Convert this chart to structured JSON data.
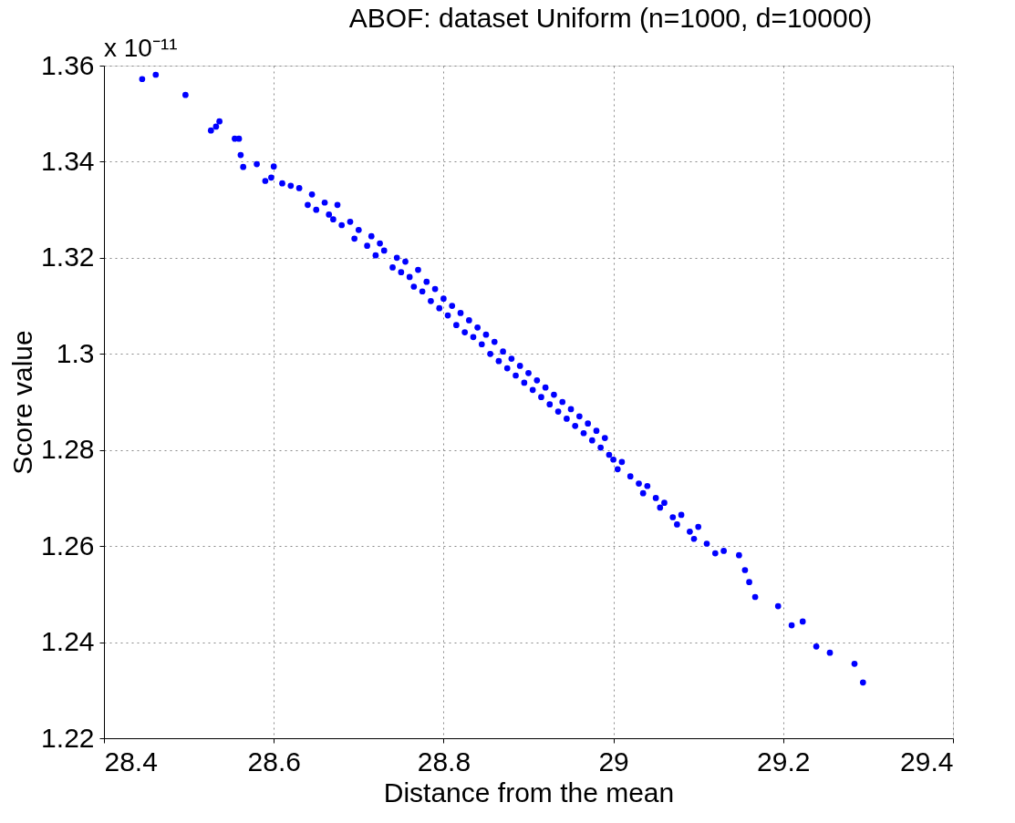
{
  "chart_data": {
    "type": "scatter",
    "title": "ABOF: dataset Uniform (n=1000, d=10000)",
    "xlabel": "Distance from the mean",
    "ylabel": "Score value",
    "annotations": [
      "x 10⁻¹¹"
    ],
    "xlim": [
      28.4,
      29.4
    ],
    "xticks": [
      28.4,
      28.6,
      28.8,
      29,
      29.2,
      29.4
    ],
    "ylim": [
      1.22,
      1.36
    ],
    "yticks": [
      1.22,
      1.24,
      1.26,
      1.28,
      1.3,
      1.32,
      1.34,
      1.36
    ],
    "grid": true,
    "marker": "circle",
    "series": [
      {
        "color": "#0000ff",
        "x": [
          28.445,
          28.461,
          28.496,
          28.526,
          28.532,
          28.536,
          28.554,
          28.559,
          28.561,
          28.564,
          28.58,
          28.59,
          28.597,
          28.6,
          28.61,
          28.62,
          28.63,
          28.64,
          28.645,
          28.65,
          28.66,
          28.665,
          28.67,
          28.675,
          28.68,
          28.69,
          28.695,
          28.7,
          28.71,
          28.715,
          28.72,
          28.725,
          28.73,
          28.74,
          28.745,
          28.75,
          28.755,
          28.76,
          28.765,
          28.77,
          28.775,
          28.78,
          28.785,
          28.79,
          28.795,
          28.8,
          28.805,
          28.81,
          28.815,
          28.82,
          28.825,
          28.83,
          28.835,
          28.84,
          28.845,
          28.85,
          28.855,
          28.86,
          28.865,
          28.87,
          28.875,
          28.88,
          28.885,
          28.89,
          28.895,
          28.9,
          28.905,
          28.91,
          28.915,
          28.92,
          28.925,
          28.93,
          28.935,
          28.94,
          28.945,
          28.95,
          28.955,
          28.96,
          28.965,
          28.97,
          28.975,
          28.98,
          28.985,
          28.99,
          28.995,
          29.0,
          29.005,
          29.01,
          29.02,
          29.03,
          29.035,
          29.04,
          29.05,
          29.055,
          29.06,
          29.07,
          29.075,
          29.08,
          29.09,
          29.095,
          29.1,
          29.11,
          29.12,
          29.13,
          29.148,
          29.155,
          29.16,
          29.167,
          29.194,
          29.21,
          29.223,
          29.239,
          29.255,
          29.284,
          29.294
        ],
        "values": [
          1.3572,
          1.3581,
          1.3539,
          1.3465,
          1.3473,
          1.3484,
          1.3448,
          1.3448,
          1.3414,
          1.3389,
          1.3395,
          1.336,
          1.3367,
          1.339,
          1.3355,
          1.335,
          1.3345,
          1.331,
          1.3332,
          1.33,
          1.3315,
          1.329,
          1.328,
          1.331,
          1.3268,
          1.3275,
          1.324,
          1.3258,
          1.3225,
          1.3245,
          1.3205,
          1.323,
          1.3215,
          1.318,
          1.32,
          1.317,
          1.3192,
          1.316,
          1.314,
          1.3175,
          1.313,
          1.315,
          1.311,
          1.3135,
          1.3095,
          1.3115,
          1.308,
          1.31,
          1.306,
          1.3085,
          1.3045,
          1.307,
          1.3035,
          1.3055,
          1.302,
          1.304,
          1.3,
          1.3025,
          1.2985,
          1.3005,
          1.297,
          1.299,
          1.2955,
          1.2975,
          1.294,
          1.296,
          1.2925,
          1.2945,
          1.291,
          1.293,
          1.2895,
          1.2915,
          1.288,
          1.29,
          1.2865,
          1.2885,
          1.285,
          1.287,
          1.2835,
          1.2855,
          1.282,
          1.284,
          1.2805,
          1.2825,
          1.279,
          1.278,
          1.276,
          1.2775,
          1.2745,
          1.273,
          1.271,
          1.2725,
          1.27,
          1.268,
          1.269,
          1.266,
          1.2645,
          1.2665,
          1.263,
          1.2615,
          1.264,
          1.2605,
          1.2585,
          1.259,
          1.2581,
          1.255,
          1.2525,
          1.2494,
          1.2475,
          1.2435,
          1.2443,
          1.2391,
          1.2378,
          1.2355,
          1.2316
        ]
      }
    ]
  }
}
